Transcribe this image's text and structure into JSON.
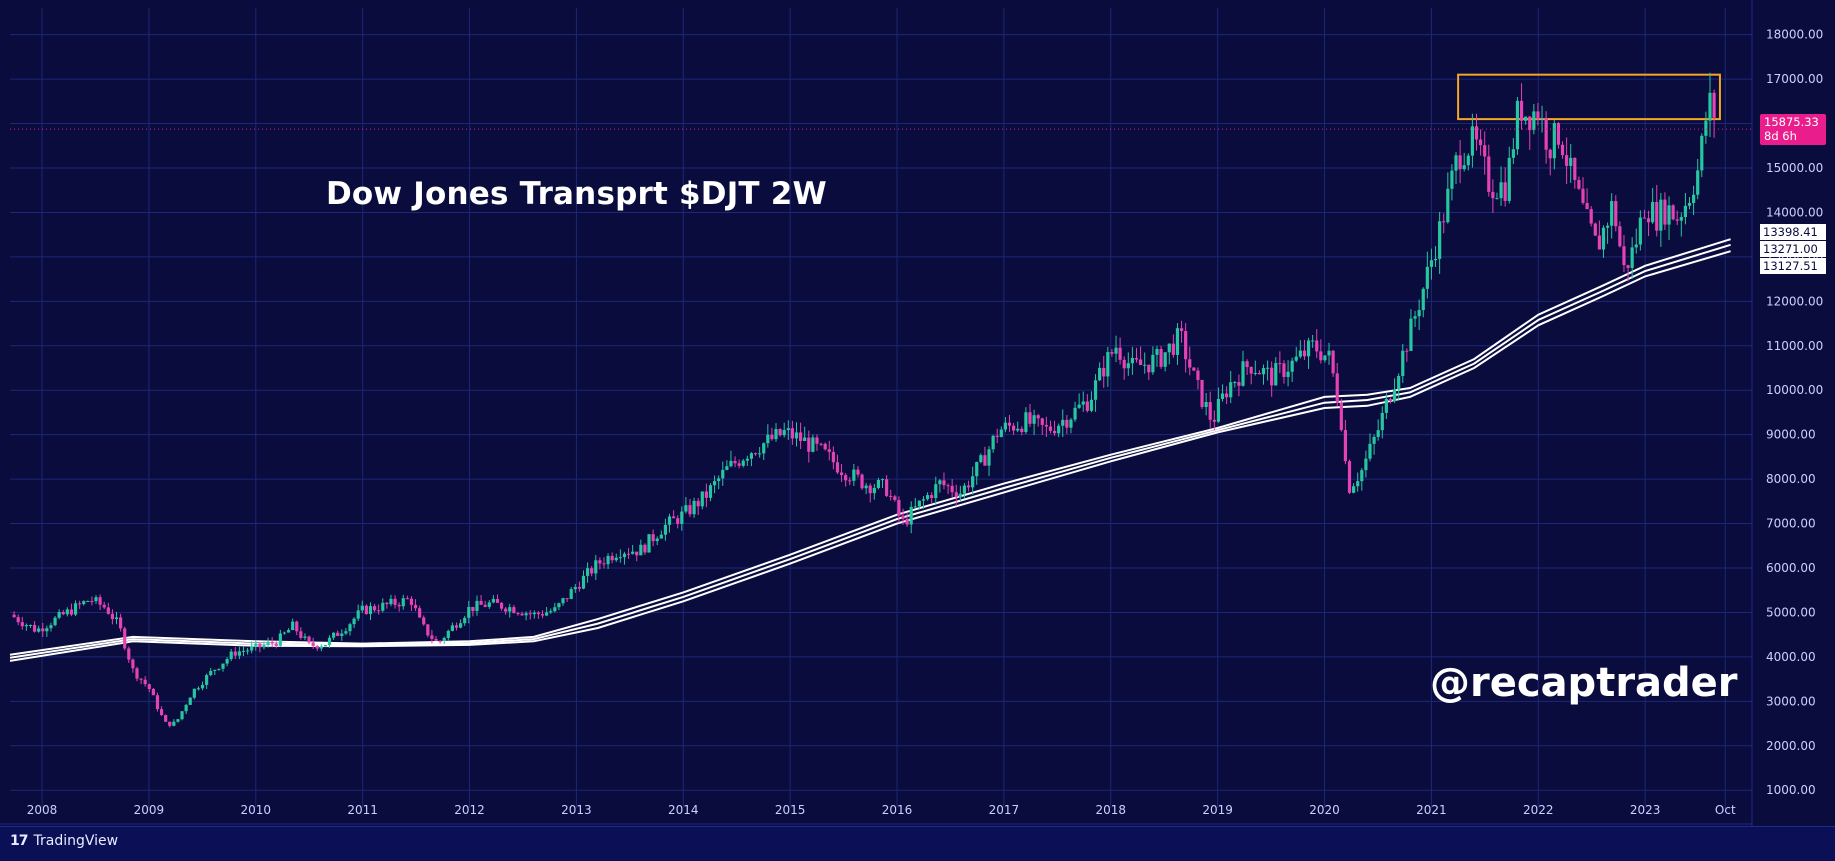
{
  "title": "Dow Jones Transprt $DJT 2W",
  "watermark": "@recaptrader",
  "brand": "TradingView",
  "brand_icon": "tradingview-logo-icon",
  "colors": {
    "background": "#0a0c3e",
    "grid": "#1c2777",
    "up": "#26c6a0",
    "down": "#e542b4",
    "ma": "#ffffff",
    "resistance_box": "#f5a623",
    "price_tag": "#e91e8c"
  },
  "price_tag": {
    "value": "15875.33",
    "countdown": "8d 6h"
  },
  "ma_tags": [
    "13398.41",
    "13271.00",
    "13127.51"
  ],
  "chart_data": {
    "type": "candlestick",
    "title": "Dow Jones Transprt $DJT 2W",
    "interval": "2W",
    "yaxis": {
      "ticks": [
        1000,
        2000,
        3000,
        4000,
        5000,
        6000,
        7000,
        8000,
        9000,
        10000,
        11000,
        12000,
        13000,
        14000,
        15000,
        16000,
        17000,
        18000
      ],
      "tick_labels": [
        "1000.00",
        "2000.00",
        "3000.00",
        "4000.00",
        "5000.00",
        "6000.00",
        "7000.00",
        "8000.00",
        "9000.00",
        "10000.00",
        "11000.00",
        "12000.00",
        "13000.00",
        "14000.00",
        "15000.00",
        "16000.00",
        "17000.00",
        "18000.00"
      ],
      "range": [
        600,
        18600
      ],
      "position": "right"
    },
    "xaxis": {
      "ticks": [
        2008,
        2009,
        2010,
        2011,
        2012,
        2013,
        2014,
        2015,
        2016,
        2017,
        2018,
        2019,
        2020,
        2021,
        2022,
        2023,
        2023.75
      ],
      "tick_labels": [
        "2008",
        "2009",
        "2010",
        "2011",
        "2012",
        "2013",
        "2014",
        "2015",
        "2016",
        "2017",
        "2018",
        "2019",
        "2020",
        "2021",
        "2022",
        "2023",
        "Oct"
      ],
      "range": [
        2007.7,
        2024.0
      ]
    },
    "grid": true,
    "last_price": 15875.33,
    "price_path": [
      [
        2007.7,
        4950
      ],
      [
        2007.95,
        4600
      ],
      [
        2008.2,
        4950
      ],
      [
        2008.45,
        5300
      ],
      [
        2008.6,
        5100
      ],
      [
        2008.72,
        4700
      ],
      [
        2008.85,
        3700
      ],
      [
        2009.0,
        3300
      ],
      [
        2009.15,
        2500
      ],
      [
        2009.25,
        2500
      ],
      [
        2009.4,
        3200
      ],
      [
        2009.6,
        3700
      ],
      [
        2009.8,
        4100
      ],
      [
        2010.0,
        4200
      ],
      [
        2010.2,
        4350
      ],
      [
        2010.35,
        4700
      ],
      [
        2010.5,
        4250
      ],
      [
        2010.65,
        4300
      ],
      [
        2010.85,
        4700
      ],
      [
        2011.0,
        5050
      ],
      [
        2011.2,
        5150
      ],
      [
        2011.45,
        5300
      ],
      [
        2011.55,
        4700
      ],
      [
        2011.7,
        4300
      ],
      [
        2011.85,
        4700
      ],
      [
        2012.0,
        5100
      ],
      [
        2012.2,
        5200
      ],
      [
        2012.4,
        5100
      ],
      [
        2012.6,
        4950
      ],
      [
        2012.8,
        5050
      ],
      [
        2013.0,
        5600
      ],
      [
        2013.2,
        6100
      ],
      [
        2013.4,
        6400
      ],
      [
        2013.6,
        6400
      ],
      [
        2013.8,
        6900
      ],
      [
        2014.0,
        7200
      ],
      [
        2014.2,
        7600
      ],
      [
        2014.4,
        8200
      ],
      [
        2014.6,
        8600
      ],
      [
        2014.75,
        8800
      ],
      [
        2014.95,
        9050
      ],
      [
        2015.1,
        8900
      ],
      [
        2015.3,
        8600
      ],
      [
        2015.5,
        8200
      ],
      [
        2015.7,
        7900
      ],
      [
        2015.9,
        7800
      ],
      [
        2016.05,
        7000
      ],
      [
        2016.2,
        7400
      ],
      [
        2016.4,
        7900
      ],
      [
        2016.6,
        7700
      ],
      [
        2016.8,
        8400
      ],
      [
        2016.95,
        9100
      ],
      [
        2017.2,
        9300
      ],
      [
        2017.4,
        9100
      ],
      [
        2017.6,
        9400
      ],
      [
        2017.8,
        9800
      ],
      [
        2017.95,
        10600
      ],
      [
        2018.05,
        11000
      ],
      [
        2018.2,
        10500
      ],
      [
        2018.45,
        10700
      ],
      [
        2018.65,
        11200
      ],
      [
        2018.8,
        10100
      ],
      [
        2018.95,
        9300
      ],
      [
        2019.1,
        10100
      ],
      [
        2019.3,
        10600
      ],
      [
        2019.5,
        10300
      ],
      [
        2019.7,
        10600
      ],
      [
        2019.9,
        11000
      ],
      [
        2020.05,
        10700
      ],
      [
        2020.15,
        9500
      ],
      [
        2020.22,
        7800
      ],
      [
        2020.35,
        8200
      ],
      [
        2020.5,
        9100
      ],
      [
        2020.65,
        10200
      ],
      [
        2020.8,
        11300
      ],
      [
        2020.95,
        12500
      ],
      [
        2021.1,
        13800
      ],
      [
        2021.25,
        15300
      ],
      [
        2021.4,
        15600
      ],
      [
        2021.55,
        14600
      ],
      [
        2021.7,
        14600
      ],
      [
        2021.82,
        16400
      ],
      [
        2021.9,
        16200
      ],
      [
        2022.0,
        16300
      ],
      [
        2022.1,
        15500
      ],
      [
        2022.2,
        15800
      ],
      [
        2022.3,
        14900
      ],
      [
        2022.45,
        13800
      ],
      [
        2022.55,
        13200
      ],
      [
        2022.7,
        14200
      ],
      [
        2022.8,
        12700
      ],
      [
        2022.9,
        13200
      ],
      [
        2023.0,
        14200
      ],
      [
        2023.1,
        13900
      ],
      [
        2023.2,
        14100
      ],
      [
        2023.3,
        13900
      ],
      [
        2023.4,
        14300
      ],
      [
        2023.5,
        15000
      ],
      [
        2023.58,
        16300
      ],
      [
        2023.62,
        16500
      ],
      [
        2023.68,
        15875
      ]
    ],
    "moving_averages": [
      {
        "label": "13398.41",
        "points": [
          [
            2007.7,
            4050
          ],
          [
            2008.85,
            4450
          ],
          [
            2010.0,
            4350
          ],
          [
            2011.0,
            4300
          ],
          [
            2012.0,
            4350
          ],
          [
            2012.6,
            4450
          ],
          [
            2013.2,
            4850
          ],
          [
            2014.0,
            5450
          ],
          [
            2015.0,
            6300
          ],
          [
            2016.0,
            7200
          ],
          [
            2017.0,
            7900
          ],
          [
            2018.0,
            8550
          ],
          [
            2019.0,
            9150
          ],
          [
            2020.0,
            9850
          ],
          [
            2020.4,
            9900
          ],
          [
            2020.8,
            10050
          ],
          [
            2021.4,
            10700
          ],
          [
            2022.0,
            11700
          ],
          [
            2022.6,
            12350
          ],
          [
            2023.0,
            12800
          ],
          [
            2023.8,
            13398.41
          ]
        ]
      },
      {
        "label": "13271.00",
        "points": [
          [
            2007.7,
            3980
          ],
          [
            2008.85,
            4400
          ],
          [
            2010.0,
            4300
          ],
          [
            2011.0,
            4270
          ],
          [
            2012.0,
            4310
          ],
          [
            2012.6,
            4400
          ],
          [
            2013.2,
            4750
          ],
          [
            2014.0,
            5350
          ],
          [
            2015.0,
            6200
          ],
          [
            2016.0,
            7100
          ],
          [
            2017.0,
            7800
          ],
          [
            2018.0,
            8480
          ],
          [
            2019.0,
            9100
          ],
          [
            2020.0,
            9720
          ],
          [
            2020.4,
            9780
          ],
          [
            2020.8,
            9950
          ],
          [
            2021.4,
            10600
          ],
          [
            2022.0,
            11580
          ],
          [
            2022.6,
            12230
          ],
          [
            2023.0,
            12680
          ],
          [
            2023.8,
            13271.0
          ]
        ]
      },
      {
        "label": "13127.51",
        "points": [
          [
            2007.7,
            3910
          ],
          [
            2008.85,
            4350
          ],
          [
            2010.0,
            4250
          ],
          [
            2011.0,
            4240
          ],
          [
            2012.0,
            4270
          ],
          [
            2012.6,
            4350
          ],
          [
            2013.2,
            4650
          ],
          [
            2014.0,
            5250
          ],
          [
            2015.0,
            6100
          ],
          [
            2016.0,
            7000
          ],
          [
            2017.0,
            7700
          ],
          [
            2018.0,
            8400
          ],
          [
            2019.0,
            9050
          ],
          [
            2020.0,
            9600
          ],
          [
            2020.4,
            9650
          ],
          [
            2020.8,
            9850
          ],
          [
            2021.4,
            10500
          ],
          [
            2022.0,
            11460
          ],
          [
            2022.6,
            12110
          ],
          [
            2023.0,
            12560
          ],
          [
            2023.8,
            13127.51
          ]
        ]
      }
    ],
    "resistance_zone": {
      "x": [
        2021.25,
        2023.7
      ],
      "y": [
        16100,
        17100
      ]
    },
    "last_price_line": 15875.33
  }
}
